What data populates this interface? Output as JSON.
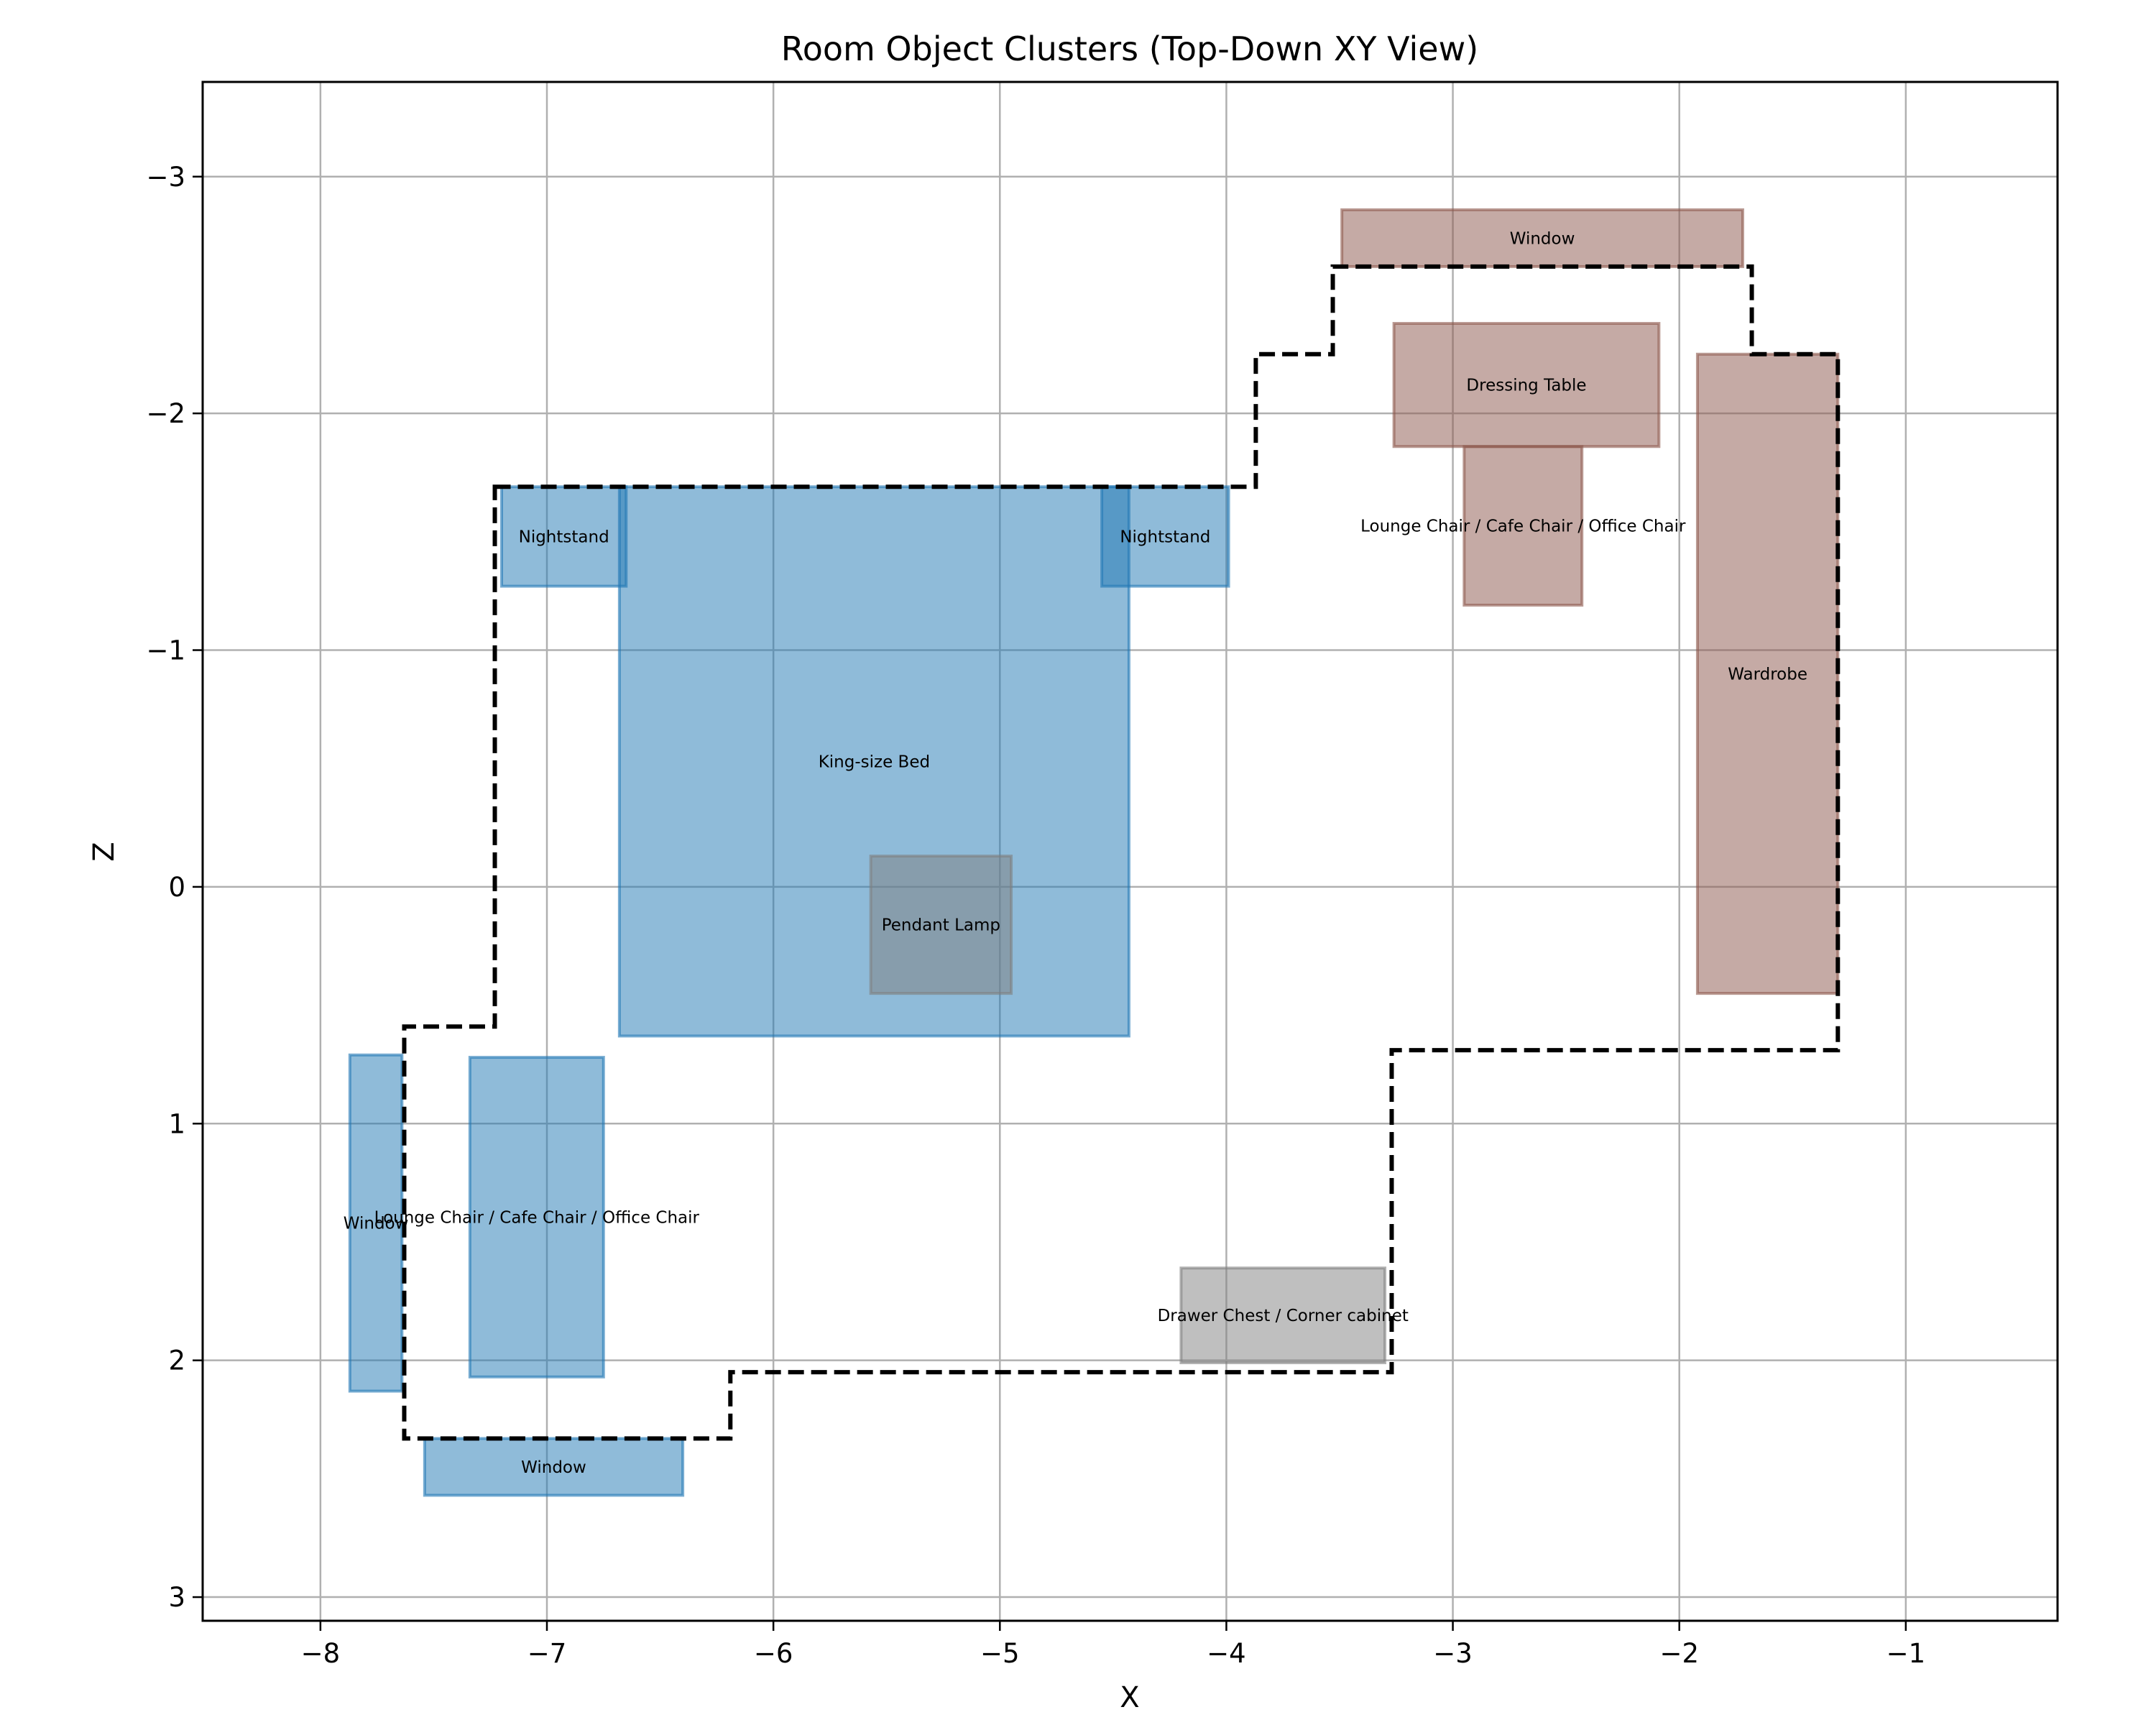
{
  "chart_data": {
    "type": "rectangles",
    "title": "Room Object Clusters (Top-Down XY View)",
    "xlabel": "X",
    "ylabel": "Z",
    "xlim": [
      -8.52,
      -0.33
    ],
    "ylim": [
      3.1,
      -3.4
    ],
    "y_inverted": true,
    "grid": true,
    "xticks": [
      -8,
      -7,
      -6,
      -5,
      -4,
      -3,
      -2,
      -1
    ],
    "xtick_labels": [
      "−8",
      "−7",
      "−6",
      "−5",
      "−4",
      "−3",
      "−2",
      "−1"
    ],
    "yticks": [
      -3,
      -2,
      -1,
      0,
      1,
      2,
      3
    ],
    "ytick_labels": [
      "−3",
      "−2",
      "−1",
      "0",
      "1",
      "2",
      "3"
    ],
    "colors": {
      "blue": "#1f77b4",
      "brown": "#8c564b",
      "gray": "#7f7f7f",
      "boundary": "#000000",
      "grid": "#b0b0b0"
    },
    "boundaries": [
      {
        "points": [
          [
            -7.23,
            -1.69
          ],
          [
            -3.87,
            -1.69
          ],
          [
            -3.87,
            -2.25
          ],
          [
            -3.53,
            -2.25
          ],
          [
            -3.53,
            -2.62
          ],
          [
            -1.68,
            -2.62
          ],
          [
            -1.68,
            -2.25
          ],
          [
            -1.3,
            -2.25
          ],
          [
            -1.3,
            0.69
          ],
          [
            -3.27,
            0.69
          ],
          [
            -3.27,
            2.05
          ],
          [
            -6.19,
            2.05
          ],
          [
            -6.19,
            2.33
          ],
          [
            -7.63,
            2.33
          ],
          [
            -7.63,
            0.59
          ],
          [
            -7.23,
            0.59
          ]
        ]
      }
    ],
    "objects": [
      {
        "label": "Nightstand",
        "x0": -7.2,
        "x1": -6.65,
        "z0": -1.69,
        "z1": -1.27,
        "color": "blue"
      },
      {
        "label": "Nightstand",
        "x0": -4.55,
        "x1": -3.99,
        "z0": -1.69,
        "z1": -1.27,
        "color": "blue"
      },
      {
        "label": "King-size Bed",
        "x0": -6.68,
        "x1": -4.43,
        "z0": -1.69,
        "z1": 0.63,
        "color": "blue"
      },
      {
        "label": "Pendant Lamp",
        "x0": -5.57,
        "x1": -4.95,
        "z0": -0.13,
        "z1": 0.45,
        "color": "gray"
      },
      {
        "label": "Window",
        "x0": -7.87,
        "x1": -7.64,
        "z0": 0.71,
        "z1": 2.13,
        "color": "blue"
      },
      {
        "label": "Lounge Chair / Cafe Chair / Office Chair",
        "x0": -7.34,
        "x1": -6.75,
        "z0": 0.72,
        "z1": 2.07,
        "color": "blue"
      },
      {
        "label": "Window",
        "x0": -7.54,
        "x1": -6.4,
        "z0": 2.33,
        "z1": 2.57,
        "color": "blue"
      },
      {
        "label": "Drawer Chest / Corner cabinet",
        "x0": -4.2,
        "x1": -3.3,
        "z0": 1.61,
        "z1": 2.01,
        "color": "gray"
      },
      {
        "label": "Window",
        "x0": -3.49,
        "x1": -1.72,
        "z0": -2.86,
        "z1": -2.62,
        "color": "brown"
      },
      {
        "label": "Dressing Table",
        "x0": -3.26,
        "x1": -2.09,
        "z0": -2.38,
        "z1": -1.86,
        "color": "brown"
      },
      {
        "label": "Lounge Chair / Cafe Chair / Office Chair",
        "x0": -2.95,
        "x1": -2.43,
        "z0": -1.86,
        "z1": -1.19,
        "color": "brown"
      },
      {
        "label": "Wardrobe",
        "x0": -1.92,
        "x1": -1.3,
        "z0": -2.25,
        "z1": 0.45,
        "color": "brown"
      }
    ]
  }
}
